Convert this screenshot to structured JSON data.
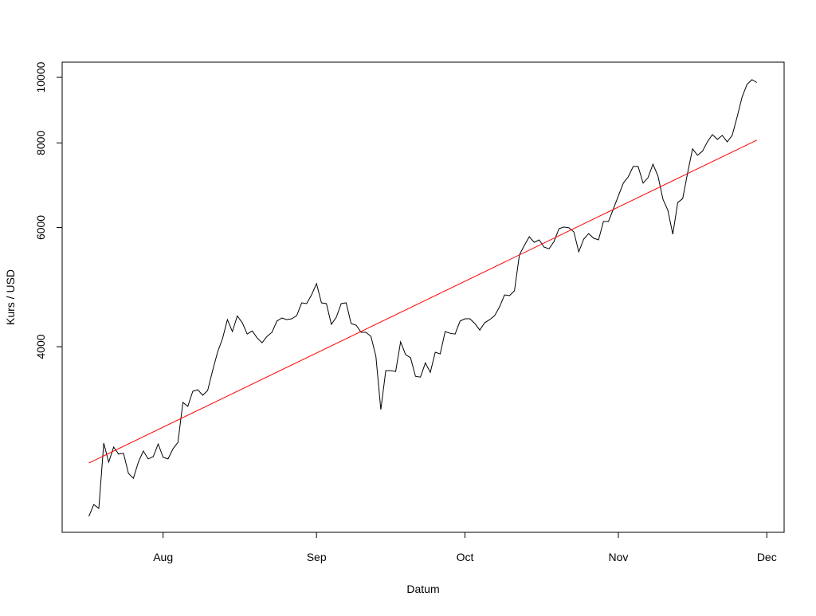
{
  "chart_data": {
    "type": "line",
    "x_label": "Datum",
    "y_label": "Kurs / USD",
    "log_y": true,
    "xlim": [
      192.6,
      338.5
    ],
    "ylim": [
      2127,
      10530
    ],
    "xticks": [
      {
        "value": 213,
        "label": "Aug"
      },
      {
        "value": 244,
        "label": "Sep"
      },
      {
        "value": 274,
        "label": "Oct"
      },
      {
        "value": 305,
        "label": "Nov"
      },
      {
        "value": 335,
        "label": "Dec"
      }
    ],
    "yticks": [
      4000,
      6000,
      8000,
      10000
    ],
    "series": [
      {
        "color": "#000000",
        "x": [
          198,
          199,
          200,
          201,
          202,
          203,
          204,
          205,
          206,
          207,
          208,
          209,
          210,
          211,
          212,
          213,
          214,
          215,
          216,
          217,
          218,
          219,
          220,
          221,
          222,
          223,
          224,
          225,
          226,
          227,
          228,
          229,
          230,
          231,
          232,
          233,
          234,
          235,
          236,
          237,
          238,
          239,
          240,
          241,
          242,
          243,
          244,
          245,
          246,
          247,
          248,
          249,
          250,
          251,
          252,
          253,
          254,
          255,
          256,
          257,
          258,
          259,
          260,
          261,
          262,
          263,
          264,
          265,
          266,
          267,
          268,
          269,
          270,
          271,
          272,
          273,
          274,
          275,
          276,
          277,
          278,
          279,
          280,
          281,
          282,
          283,
          284,
          285,
          286,
          287,
          288,
          289,
          290,
          291,
          292,
          293,
          294,
          295,
          296,
          297,
          298,
          299,
          300,
          301,
          302,
          303,
          304,
          305,
          306,
          307,
          308,
          309,
          310,
          311,
          312,
          313,
          314,
          315,
          316,
          317,
          318,
          319,
          320,
          321,
          322,
          323,
          324,
          325,
          326,
          327,
          328,
          329,
          330,
          331,
          332,
          333
        ],
        "values": [
          2245,
          2338,
          2307,
          2881,
          2700,
          2843,
          2776,
          2783,
          2599,
          2556,
          2700,
          2805,
          2730,
          2752,
          2873,
          2745,
          2730,
          2826,
          2889,
          3309,
          3265,
          3437,
          3455,
          3391,
          3446,
          3687,
          3925,
          4110,
          4385,
          4211,
          4440,
          4341,
          4175,
          4220,
          4120,
          4054,
          4143,
          4200,
          4364,
          4410,
          4385,
          4398,
          4444,
          4644,
          4631,
          4771,
          4957,
          4644,
          4631,
          4316,
          4420,
          4631,
          4644,
          4328,
          4304,
          4200,
          4200,
          4143,
          3873,
          3228,
          3687,
          3687,
          3676,
          4066,
          3893,
          3851,
          3617,
          3607,
          3785,
          3666,
          3925,
          3903,
          4211,
          4187,
          4175,
          4364,
          4398,
          4398,
          4328,
          4232,
          4341,
          4385,
          4444,
          4580,
          4771,
          4758,
          4837,
          5466,
          5644,
          5816,
          5704,
          5752,
          5612,
          5581,
          5720,
          5976,
          6010,
          5993,
          5911,
          5524,
          5768,
          5878,
          5785,
          5752,
          6124,
          6124,
          6396,
          6681,
          6977,
          7129,
          7385,
          7385,
          6977,
          7110,
          7443,
          7148,
          6607,
          6361,
          5864,
          6531,
          6620,
          7225,
          7841,
          7671,
          7776,
          8030,
          8229,
          8097,
          8207,
          8030,
          8207,
          8735,
          9348,
          9762,
          9921,
          9826
        ]
      },
      {
        "color": "#ff0000",
        "x": [
          198,
          333
        ],
        "values": [
          2692,
          8077
        ]
      }
    ]
  }
}
